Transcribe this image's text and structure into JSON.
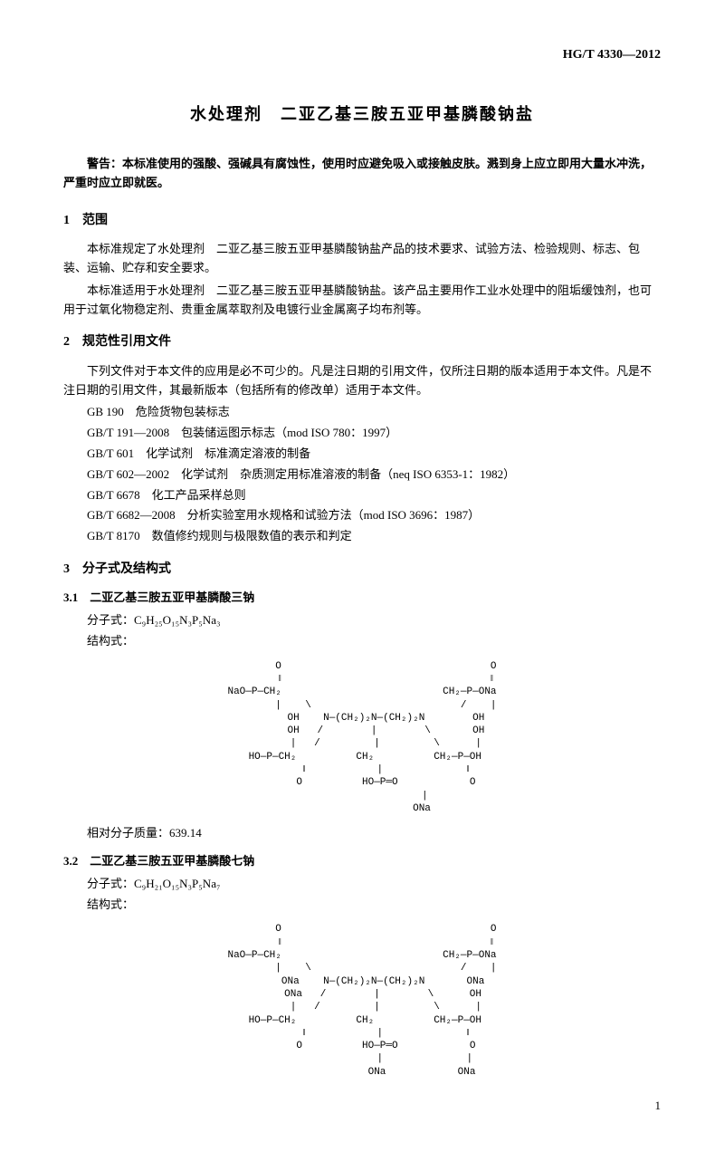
{
  "doc_code": "HG/T 4330—2012",
  "title": "水处理剂　二亚乙基三胺五亚甲基膦酸钠盐",
  "warning": "警告：本标准使用的强酸、强碱具有腐蚀性，使用时应避免吸入或接触皮肤。溅到身上应立即用大量水冲洗，严重时应立即就医。",
  "sections": {
    "s1": {
      "header": "1　范围",
      "p1": "本标准规定了水处理剂　二亚乙基三胺五亚甲基膦酸钠盐产品的技术要求、试验方法、检验规则、标志、包装、运输、贮存和安全要求。",
      "p2": "本标准适用于水处理剂　二亚乙基三胺五亚甲基膦酸钠盐。该产品主要用作工业水处理中的阻垢缓蚀剂，也可用于过氧化物稳定剂、贵重金属萃取剂及电镀行业金属离子均布剂等。"
    },
    "s2": {
      "header": "2　规范性引用文件",
      "p1": "下列文件对于本文件的应用是必不可少的。凡是注日期的引用文件，仅所注日期的版本适用于本文件。凡是不注日期的引用文件，其最新版本（包括所有的修改单）适用于本文件。",
      "refs": [
        "GB 190　危险货物包装标志",
        "GB/T 191—2008　包装储运图示标志（mod ISO 780：1997）",
        "GB/T 601　化学试剂　标准滴定溶液的制备",
        "GB/T 602—2002　化学试剂　杂质测定用标准溶液的制备（neq ISO 6353-1：1982）",
        "GB/T 6678　化工产品采样总则",
        "GB/T 6682—2008　分析实验室用水规格和试验方法（mod ISO 3696：1987）",
        "GB/T 8170　数值修约规则与极限数值的表示和判定"
      ]
    },
    "s3": {
      "header": "3　分子式及结构式",
      "sub31": {
        "header": "3.1　二亚乙基三胺五亚甲基膦酸三钠",
        "formula_label": "分子式：",
        "formula": "C₉H₂₅O₁₅N₃P₅Na₃",
        "struct_label": "结构式：",
        "struct_text": "        O                                   O\n        ‖                                   ‖\nNaO—P—CH₂                           CH₂—P—ONa\n        |    \\                         /    |\n        OH    N—(CH₂)₂N—(CH₂)₂N        OH\n        OH   /        |        \\       OH\n        |   /         |         \\      |\n HO—P—CH₂          CH₂          CH₂—P—OH\n        ‖            |              ‖\n        O          HO—P═O            O\n                     |\n                    ONa",
        "mass_label": "相对分子质量：",
        "mass_value": "639.14"
      },
      "sub32": {
        "header": "3.2　二亚乙基三胺五亚甲基膦酸七钠",
        "formula_label": "分子式：",
        "formula": "C₉H₂₁O₁₅N₃P₅Na₇",
        "struct_label": "结构式：",
        "struct_text": "        O                                   O\n        ‖                                   ‖\nNaO—P—CH₂                           CH₂—P—ONa\n        |    \\                         /    |\n       ONa    N—(CH₂)₂N—(CH₂)₂N       ONa\n       ONa   /        |        \\      OH\n        |   /         |         \\      |\n HO—P—CH₂          CH₂          CH₂—P—OH\n        ‖            |              ‖\n        O          HO—P═O            O\n                     |              |\n                    ONa            ONa"
      }
    }
  },
  "page_number": "1"
}
